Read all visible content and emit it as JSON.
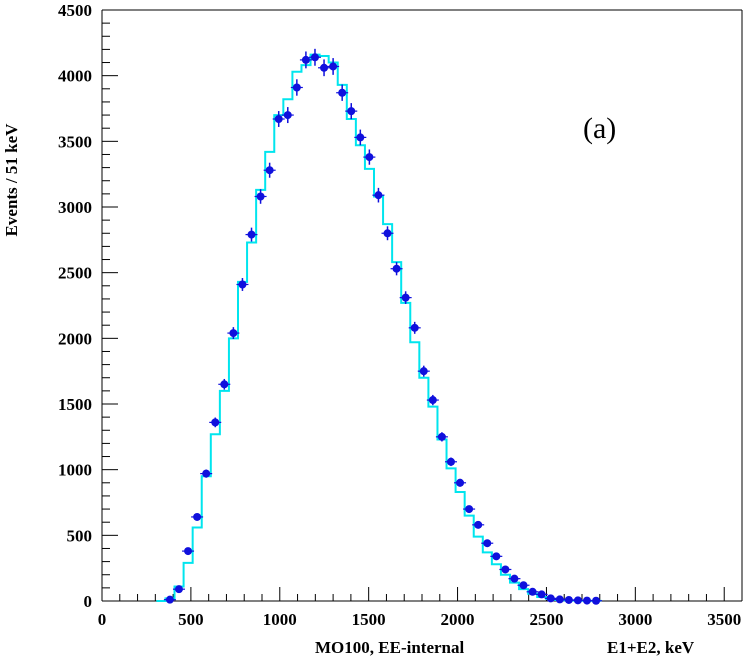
{
  "chart_data": {
    "type": "histogram",
    "title": "",
    "xlabel": "E1+E2, keV",
    "sublabel": "MO100, EE-internal",
    "ylabel": "Events / 51 keV",
    "annotation": "(a)",
    "xlim": [
      0,
      3600
    ],
    "ylim": [
      0,
      4500
    ],
    "x_ticks": [
      0,
      500,
      1000,
      1500,
      2000,
      2500,
      3000,
      3500
    ],
    "y_ticks": [
      0,
      500,
      1000,
      1500,
      2000,
      2500,
      3000,
      3500,
      4000,
      4500
    ],
    "grid": false,
    "colors": {
      "histogram": "#00e5ee",
      "points": "#1010dd"
    },
    "series": [
      {
        "name": "",
        "kind": "step-histogram",
        "bin_edges": [
          306,
          357,
          408,
          459,
          510,
          561,
          612,
          663,
          714,
          765,
          816,
          867,
          918,
          969,
          1020,
          1071,
          1122,
          1173,
          1224,
          1275,
          1326,
          1377,
          1428,
          1479,
          1530,
          1581,
          1632,
          1683,
          1734,
          1785,
          1836,
          1887,
          1938,
          1989,
          2040,
          2091,
          2142,
          2193,
          2244,
          2295,
          2346,
          2397,
          2448,
          2499,
          2550,
          2601,
          2652,
          2703,
          2754,
          2805
        ],
        "values": [
          0,
          20,
          110,
          290,
          560,
          950,
          1270,
          1600,
          2000,
          2430,
          2730,
          3130,
          3420,
          3700,
          3820,
          4030,
          4080,
          4160,
          4150,
          4100,
          3930,
          3670,
          3470,
          3290,
          3080,
          2870,
          2580,
          2270,
          1970,
          1700,
          1480,
          1230,
          1010,
          830,
          650,
          490,
          370,
          280,
          200,
          140,
          90,
          55,
          30,
          15,
          8,
          5,
          3,
          2,
          1
        ]
      },
      {
        "name": "",
        "kind": "points-with-errors",
        "x": [
          382,
          433,
          484,
          535,
          586,
          637,
          688,
          739,
          790,
          841,
          892,
          943,
          994,
          1045,
          1096,
          1147,
          1198,
          1249,
          1300,
          1351,
          1402,
          1453,
          1504,
          1555,
          1606,
          1657,
          1708,
          1759,
          1810,
          1861,
          1912,
          1963,
          2014,
          2065,
          2116,
          2167,
          2218,
          2269,
          2320,
          2371,
          2422,
          2473,
          2524,
          2575,
          2626,
          2677,
          2728,
          2779
        ],
        "y": [
          10,
          90,
          380,
          640,
          970,
          1360,
          1650,
          2040,
          2410,
          2790,
          3080,
          3280,
          3670,
          3700,
          3910,
          4120,
          4140,
          4060,
          4070,
          3870,
          3730,
          3530,
          3380,
          3090,
          2800,
          2530,
          2310,
          2080,
          1750,
          1530,
          1250,
          1060,
          900,
          700,
          580,
          440,
          340,
          240,
          170,
          120,
          70,
          50,
          20,
          12,
          8,
          5,
          3,
          2
        ]
      }
    ]
  }
}
